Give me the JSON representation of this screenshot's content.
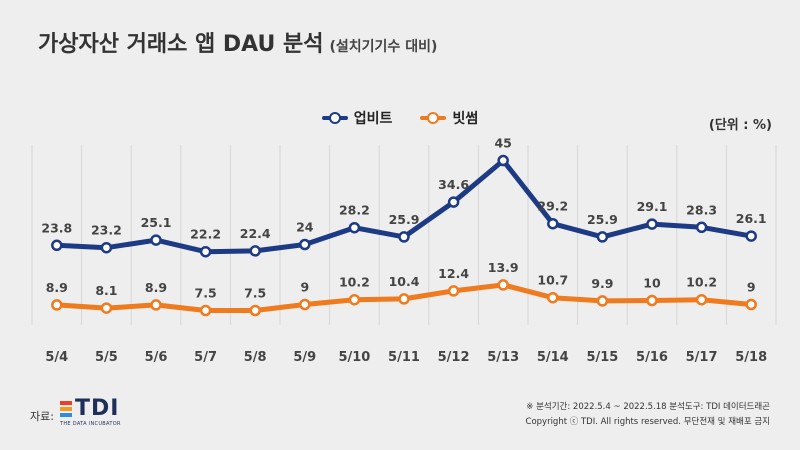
{
  "header": {
    "title": "가상자산 거래소 앱 DAU 분석",
    "subtitle": "(설치기기수 대비)"
  },
  "unit_label": "(단위 : %)",
  "colors": {
    "upbit": "#1d3a85",
    "bithumb": "#f07a1e",
    "grid": "#d6d6d6",
    "background": "#eeeeee"
  },
  "chart_data": {
    "type": "line",
    "categories": [
      "5/4",
      "5/5",
      "5/6",
      "5/7",
      "5/8",
      "5/9",
      "5/10",
      "5/11",
      "5/12",
      "5/13",
      "5/14",
      "5/15",
      "5/16",
      "5/17",
      "5/18"
    ],
    "series": [
      {
        "name": "업비트",
        "values": [
          23.8,
          23.2,
          25.1,
          22.2,
          22.4,
          24,
          28.2,
          25.9,
          34.6,
          45,
          29.2,
          25.9,
          29.1,
          28.3,
          26.1
        ]
      },
      {
        "name": "빗썸",
        "values": [
          8.9,
          8.1,
          8.9,
          7.5,
          7.5,
          9,
          10.2,
          10.4,
          12.4,
          13.9,
          10.7,
          9.9,
          10,
          10.2,
          9
        ]
      }
    ],
    "value_labels": [
      [
        "23.8",
        "23.2",
        "25.1",
        "22.2",
        "22.4",
        "24",
        "28.2",
        "25.9",
        "34.6",
        "45",
        "29.2",
        "25.9",
        "29.1",
        "28.3",
        "26.1"
      ],
      [
        "8.9",
        "8.1",
        "8.9",
        "7.5",
        "7.5",
        "9",
        "10.2",
        "10.4",
        "12.4",
        "13.9",
        "10.7",
        "9.9",
        "10",
        "10.2",
        "9"
      ]
    ],
    "title": "",
    "xlabel": "",
    "ylabel": "",
    "ylim": [
      0,
      48
    ],
    "grid": "vertical",
    "legend": "top-center"
  },
  "footer": {
    "source_label": "자료:",
    "logo_text": "TDI",
    "logo_subtext": "THE DATA INCUBATOR",
    "period_line": "※ 분석기간: 2022.5.4 ~ 2022.5.18   분석도구: TDI 데이터드래곤",
    "copyright_line": "Copyright ⓒ TDI. All rights reserved. 무단전재 및 재배포 금지"
  },
  "logo_colors": [
    "#e8402a",
    "#f39a1f",
    "#2f8fd6"
  ]
}
